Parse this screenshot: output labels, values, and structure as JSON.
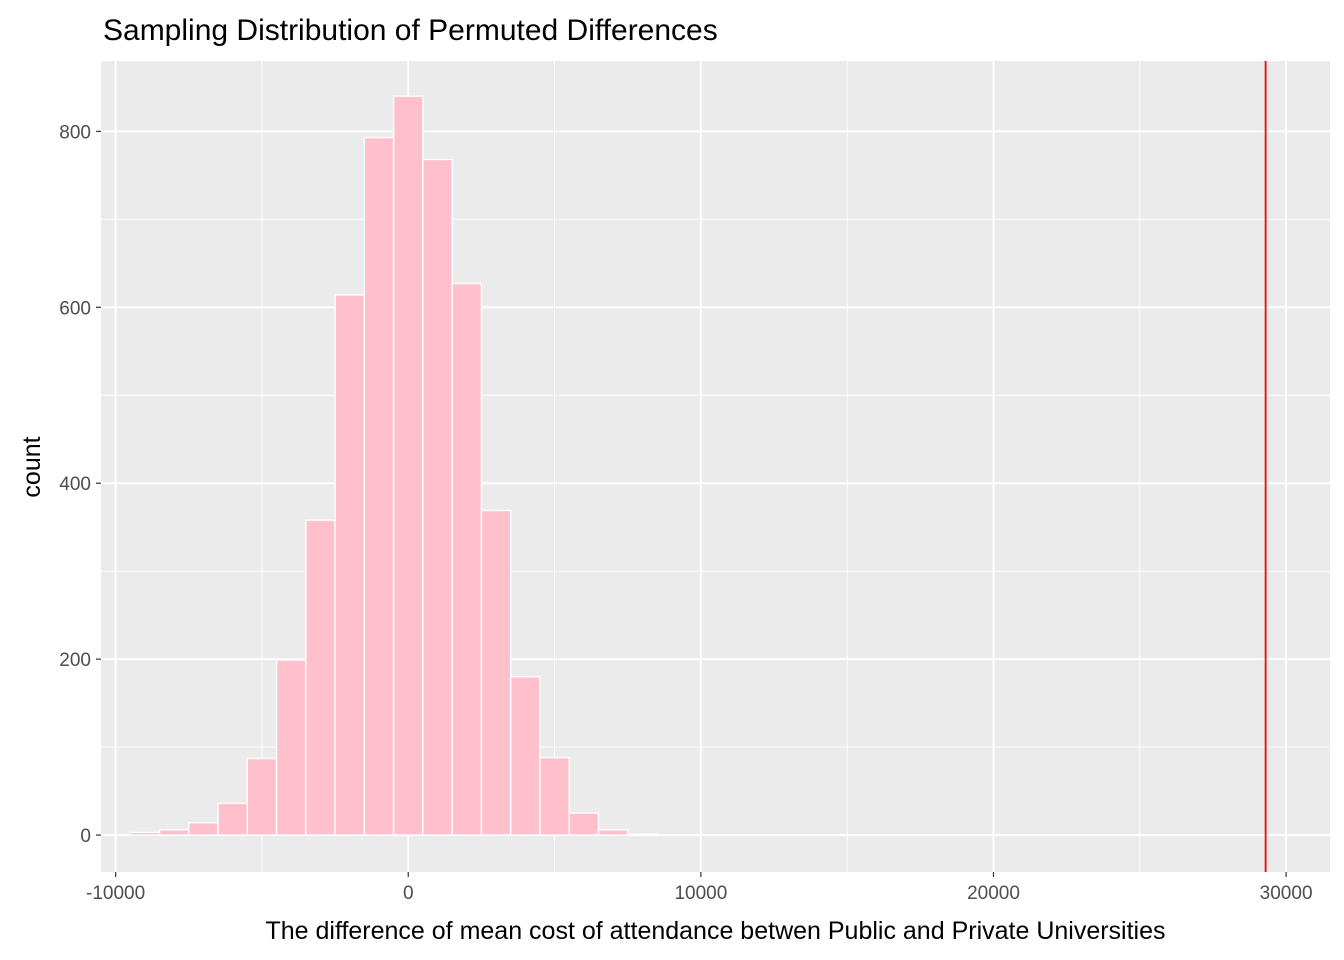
{
  "chart_data": {
    "type": "histogram",
    "title": "Sampling Distribution of Permuted Differences",
    "xlabel": "The difference of mean cost of attendance betwen Public and Private Universities",
    "ylabel": "count",
    "xlim": [
      -10500,
      31500
    ],
    "ylim": [
      -42,
      880
    ],
    "x_ticks": [
      -10000,
      0,
      10000,
      20000,
      30000
    ],
    "x_tick_labels": [
      "-10000",
      "0",
      "10000",
      "20000",
      "30000"
    ],
    "y_ticks": [
      0,
      200,
      400,
      600,
      800
    ],
    "y_tick_labels": [
      "0",
      "200",
      "400",
      "600",
      "800"
    ],
    "grid": true,
    "bin_width": 1000,
    "bin_edges": [
      -9500,
      -8500,
      -7500,
      -6500,
      -5500,
      -4500,
      -3500,
      -2500,
      -1500,
      -500,
      500,
      1500,
      2500,
      3500,
      4500,
      5500,
      6500,
      7500,
      8500,
      9500,
      10500,
      11500,
      12500,
      13500,
      14500,
      15500,
      16500,
      17500,
      18500,
      19500,
      20500,
      21500,
      22500,
      23500,
      24500,
      25500,
      26500,
      27500,
      28500,
      29500
    ],
    "counts": [
      3,
      6,
      14,
      36,
      87,
      199,
      358,
      614,
      793,
      840,
      768,
      627,
      369,
      180,
      88,
      25,
      6,
      1,
      0,
      0,
      0,
      0,
      0,
      0,
      0,
      0,
      0,
      0,
      0,
      0,
      0,
      0,
      0,
      0,
      0,
      0,
      0,
      0,
      0
    ],
    "bar_color": "#FFC0CB",
    "bar_outline_color": "#FFFFFF",
    "vline": {
      "x": 29300,
      "color": "#FF0000"
    },
    "panel_background": "#EBEBEB",
    "grid_color": "#FFFFFF"
  }
}
